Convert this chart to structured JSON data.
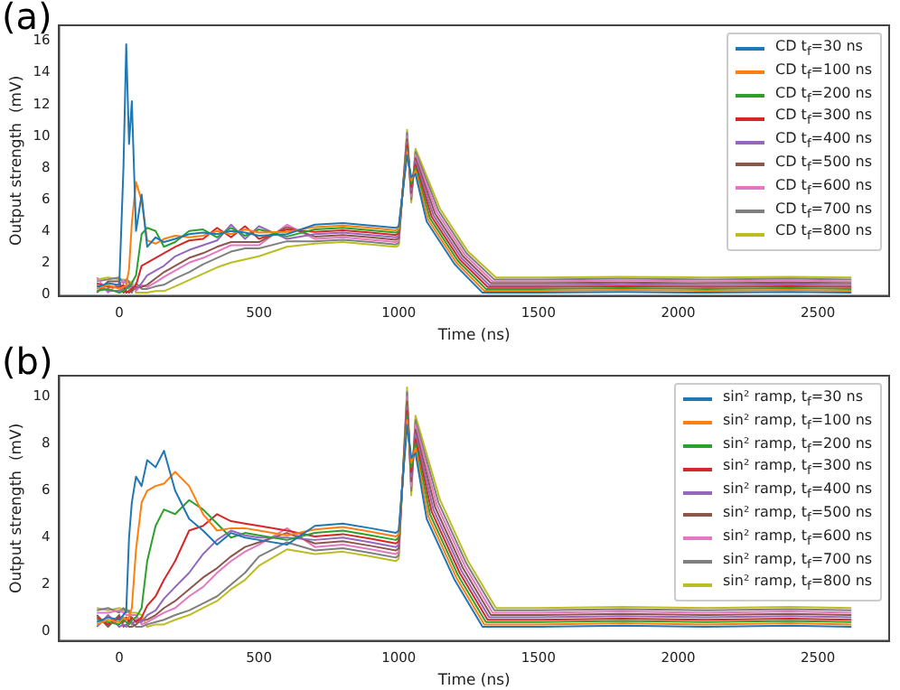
{
  "chart_data": [
    {
      "type": "line",
      "title": "(a)",
      "xlabel": "Time (ns)",
      "ylabel": "Output strength  (mV)",
      "xlim": [
        -215,
        2755
      ],
      "ylim": [
        -0.1,
        17
      ],
      "xticks": [
        0,
        500,
        1000,
        1500,
        2000,
        2500
      ],
      "yticks": [
        0,
        2,
        4,
        6,
        8,
        10,
        12,
        14,
        16
      ],
      "grid": false,
      "legend": "top right",
      "line_style": "solid",
      "series": [
        {
          "name": "CD t$_{f}$=30 ns",
          "color": "#1f77b4",
          "x": [
            -80,
            -40,
            0,
            15,
            25,
            35,
            45,
            60,
            80,
            100,
            130,
            160,
            200,
            250,
            300,
            350,
            400,
            450,
            500,
            600,
            700,
            800,
            900,
            990,
            1000,
            1030,
            1045,
            1060,
            1100,
            1200,
            1300,
            1500,
            1800,
            2100,
            2400,
            2620
          ],
          "values": [
            0.46,
            0.7,
            0.58,
            8,
            15.8,
            9.5,
            12.2,
            4,
            6.3,
            3.0,
            3.6,
            3.3,
            3.5,
            3.8,
            3.9,
            3.8,
            4.0,
            3.9,
            3.7,
            3.8,
            4.4,
            4.5,
            4.35,
            4.2,
            4.3,
            8.8,
            7.4,
            7.6,
            4.6,
            1.9,
            0.1,
            0.1,
            0.15,
            0.1,
            0.15,
            0.1
          ]
        },
        {
          "name": "CD t$_{f}$=100 ns",
          "color": "#ff7f0e",
          "x": [
            -80,
            -40,
            0,
            15,
            25,
            35,
            45,
            60,
            80,
            100,
            130,
            160,
            200,
            250,
            300,
            350,
            400,
            450,
            500,
            600,
            700,
            800,
            900,
            990,
            1000,
            1030,
            1045,
            1060,
            1106,
            1206,
            1306,
            1500,
            1800,
            2100,
            2400,
            2620
          ],
          "values": [
            0.34,
            0.58,
            0.34,
            0.46,
            0.58,
            1.6,
            4.5,
            7.1,
            5.9,
            3.4,
            3.2,
            3.5,
            3.7,
            3.6,
            3.7,
            4.0,
            3.8,
            4.1,
            3.9,
            3.95,
            4.25,
            4.35,
            4.2,
            4.05,
            4.15,
            9.0,
            7.2,
            7.8,
            4.7,
            2.0,
            0.22,
            0.22,
            0.27,
            0.22,
            0.27,
            0.22
          ]
        },
        {
          "name": "CD t$_{f}$=200 ns",
          "color": "#2ca02c",
          "x": [
            -80,
            -40,
            0,
            15,
            25,
            35,
            45,
            60,
            80,
            100,
            130,
            160,
            200,
            250,
            300,
            350,
            400,
            450,
            500,
            600,
            700,
            800,
            900,
            990,
            1000,
            1030,
            1045,
            1060,
            1112,
            1212,
            1312,
            1500,
            1800,
            2100,
            2400,
            2620
          ],
          "values": [
            0.22,
            0.34,
            0.1,
            0.22,
            0.34,
            0.46,
            0.7,
            1.2,
            3.8,
            4.2,
            4.0,
            3.0,
            3.3,
            4.0,
            4.1,
            3.6,
            4.2,
            3.7,
            4.1,
            3.65,
            4.1,
            4.2,
            4.05,
            3.9,
            4.0,
            9.2,
            7.0,
            8.0,
            4.8,
            2.1,
            0.34,
            0.34,
            0.39,
            0.34,
            0.39,
            0.34
          ]
        },
        {
          "name": "CD t$_{f}$=300 ns",
          "color": "#d62728",
          "x": [
            -80,
            -40,
            0,
            15,
            25,
            35,
            45,
            60,
            80,
            100,
            130,
            160,
            200,
            250,
            300,
            350,
            400,
            450,
            500,
            600,
            700,
            800,
            900,
            990,
            1000,
            1030,
            1045,
            1060,
            1118,
            1218,
            1318,
            1500,
            1800,
            2100,
            2400,
            2620
          ],
          "values": [
            0.7,
            0.46,
            0.46,
            0.58,
            0.1,
            0.22,
            0.34,
            0.58,
            1.8,
            2.0,
            2.3,
            2.6,
            3.0,
            3.4,
            3.5,
            4.2,
            3.6,
            4.3,
            3.5,
            4.1,
            3.95,
            4.05,
            3.9,
            3.75,
            3.85,
            9.4,
            6.8,
            8.2,
            4.9,
            2.2,
            0.46,
            0.46,
            0.51,
            0.46,
            0.51,
            0.46
          ]
        },
        {
          "name": "CD t$_{f}$=400 ns",
          "color": "#9467bd",
          "x": [
            -80,
            -40,
            0,
            15,
            25,
            35,
            45,
            60,
            80,
            100,
            130,
            160,
            200,
            250,
            300,
            350,
            400,
            450,
            500,
            600,
            700,
            800,
            900,
            990,
            1000,
            1030,
            1045,
            1060,
            1124,
            1224,
            1324,
            1500,
            1800,
            2100,
            2400,
            2620
          ],
          "values": [
            0.58,
            0.22,
            0.22,
            0.34,
            0.46,
            0.58,
            0.46,
            0.34,
            0.7,
            1.2,
            1.5,
            1.8,
            2.4,
            2.8,
            3.1,
            3.4,
            4.4,
            3.5,
            4.3,
            3.5,
            3.8,
            3.9,
            3.75,
            3.6,
            3.7,
            9.6,
            6.6,
            8.4,
            5.0,
            2.3,
            0.58,
            0.58,
            0.63,
            0.58,
            0.63,
            0.58
          ]
        },
        {
          "name": "CD t$_{f}$=500 ns",
          "color": "#8c564b",
          "x": [
            -80,
            -40,
            0,
            15,
            25,
            35,
            45,
            60,
            80,
            100,
            130,
            160,
            200,
            250,
            300,
            350,
            400,
            450,
            500,
            600,
            700,
            800,
            900,
            990,
            1000,
            1030,
            1045,
            1060,
            1130,
            1230,
            1330,
            1500,
            1800,
            2100,
            2400,
            2620
          ],
          "values": [
            0.1,
            0.82,
            0.82,
            0.1,
            0.22,
            0.1,
            0.22,
            0.46,
            0.46,
            0.6,
            1.0,
            1.4,
            1.8,
            2.3,
            2.6,
            3.0,
            3.3,
            3.3,
            3.3,
            4.25,
            3.65,
            3.75,
            3.6,
            3.45,
            3.55,
            9.8,
            6.4,
            8.6,
            5.1,
            2.4,
            0.7,
            0.7,
            0.75,
            0.7,
            0.75,
            0.7
          ]
        },
        {
          "name": "CD t$_{f}$=600 ns",
          "color": "#e377c2",
          "x": [
            -80,
            -40,
            0,
            15,
            25,
            35,
            45,
            60,
            80,
            100,
            130,
            160,
            200,
            250,
            300,
            350,
            400,
            450,
            500,
            600,
            700,
            800,
            900,
            990,
            1000,
            1030,
            1045,
            1060,
            1136,
            1236,
            1336,
            1500,
            1800,
            2100,
            2400,
            2620
          ],
          "values": [
            1.06,
            0.1,
            0.7,
            0.82,
            0.7,
            0.34,
            0.58,
            0.22,
            0.58,
            0.46,
            0.75,
            1.1,
            1.5,
            2.0,
            2.3,
            2.7,
            3.1,
            3.1,
            3.1,
            4.4,
            3.5,
            3.6,
            3.45,
            3.3,
            3.4,
            10.0,
            6.2,
            8.8,
            5.2,
            2.5,
            0.82,
            0.82,
            0.87,
            0.82,
            0.87,
            0.82
          ]
        },
        {
          "name": "CD t$_{f}$=700 ns",
          "color": "#7f7f7f",
          "x": [
            -80,
            -40,
            0,
            15,
            25,
            35,
            45,
            60,
            80,
            100,
            130,
            160,
            200,
            250,
            300,
            350,
            400,
            450,
            500,
            600,
            700,
            800,
            900,
            990,
            1000,
            1030,
            1045,
            1060,
            1142,
            1242,
            1342,
            1500,
            1800,
            2100,
            2400,
            2620
          ],
          "values": [
            0.82,
            0.94,
            1.06,
            0.7,
            0.94,
            0.82,
            0.1,
            0.7,
            0.34,
            0.34,
            0.5,
            0.6,
            1.0,
            1.4,
            1.9,
            2.3,
            2.7,
            2.9,
            2.9,
            3.35,
            3.35,
            3.45,
            3.3,
            3.15,
            3.25,
            10.2,
            6.0,
            9.0,
            5.3,
            2.6,
            0.94,
            0.94,
            0.99,
            0.94,
            0.99,
            0.94
          ]
        },
        {
          "name": "CD t$_{f}$=800 ns",
          "color": "#bcbd22",
          "x": [
            -80,
            -40,
            0,
            15,
            25,
            35,
            45,
            60,
            80,
            100,
            130,
            160,
            200,
            250,
            300,
            350,
            400,
            450,
            500,
            600,
            700,
            800,
            900,
            990,
            1000,
            1030,
            1045,
            1060,
            1148,
            1248,
            1348,
            1500,
            1800,
            2100,
            2400,
            2620
          ],
          "values": [
            0.94,
            1.06,
            0.94,
            0.94,
            0.82,
            0.7,
            0.82,
            0.1,
            0.1,
            0.1,
            0.2,
            0.2,
            0.5,
            0.9,
            1.3,
            1.7,
            2.0,
            2.2,
            2.4,
            3.0,
            3.2,
            3.3,
            3.15,
            3.0,
            3.1,
            10.4,
            5.8,
            9.2,
            5.4,
            2.7,
            1.06,
            1.06,
            1.11,
            1.06,
            1.11,
            1.06
          ]
        }
      ]
    },
    {
      "type": "line",
      "title": "(b)",
      "xlabel": "Time (ns)",
      "ylabel": "Output strength  (mV)",
      "xlim": [
        -215,
        2755
      ],
      "ylim": [
        -0.4,
        10.9
      ],
      "xticks": [
        0,
        500,
        1000,
        1500,
        2000,
        2500
      ],
      "yticks": [
        0,
        2,
        4,
        6,
        8,
        10
      ],
      "grid": false,
      "legend": "top right",
      "line_style": "solid",
      "series": [
        {
          "name": "sin² ramp, t$_{f}$=30 ns",
          "color": "#1f77b4",
          "x": [
            -80,
            -40,
            0,
            15,
            25,
            35,
            45,
            60,
            80,
            100,
            130,
            160,
            200,
            250,
            300,
            350,
            400,
            450,
            500,
            600,
            700,
            800,
            900,
            990,
            1000,
            1030,
            1045,
            1060,
            1100,
            1200,
            1300,
            1500,
            1800,
            2100,
            2400,
            2620
          ],
          "values": [
            0.4,
            0.6,
            0.5,
            0.7,
            0.9,
            4.0,
            5.5,
            6.6,
            6.2,
            7.3,
            7.0,
            7.7,
            6.0,
            4.8,
            4.3,
            3.7,
            4.2,
            4.0,
            3.9,
            3.7,
            4.5,
            4.6,
            4.4,
            4.2,
            4.3,
            8.8,
            7.4,
            7.6,
            4.8,
            2.2,
            0.2,
            0.2,
            0.25,
            0.2,
            0.25,
            0.2
          ]
        },
        {
          "name": "sin² ramp, t$_{f}$=100 ns",
          "color": "#ff7f0e",
          "x": [
            -80,
            -40,
            0,
            15,
            25,
            35,
            45,
            60,
            80,
            100,
            130,
            160,
            200,
            250,
            300,
            350,
            400,
            450,
            500,
            600,
            700,
            800,
            900,
            990,
            1000,
            1030,
            1045,
            1060,
            1106,
            1206,
            1306,
            1500,
            1800,
            2100,
            2400,
            2620
          ],
          "values": [
            0.3,
            0.5,
            0.4,
            0.6,
            0.5,
            0.6,
            1.0,
            3.5,
            5.5,
            6.0,
            6.2,
            6.3,
            6.8,
            6.2,
            5.0,
            4.3,
            4.4,
            4.4,
            4.3,
            4.1,
            4.35,
            4.45,
            4.25,
            4.05,
            4.15,
            9.0,
            7.2,
            7.8,
            4.9,
            2.3,
            0.3,
            0.3,
            0.35,
            0.3,
            0.35,
            0.3
          ]
        },
        {
          "name": "sin² ramp, t$_{f}$=200 ns",
          "color": "#2ca02c",
          "x": [
            -80,
            -40,
            0,
            15,
            25,
            35,
            45,
            60,
            80,
            100,
            130,
            160,
            200,
            250,
            300,
            350,
            400,
            450,
            500,
            600,
            700,
            800,
            900,
            990,
            1000,
            1030,
            1045,
            1060,
            1112,
            1212,
            1312,
            1500,
            1800,
            2100,
            2400,
            2620
          ],
          "values": [
            0.5,
            0.4,
            0.3,
            0.5,
            0.4,
            0.3,
            0.5,
            0.6,
            1.0,
            3.0,
            4.5,
            5.2,
            5.0,
            5.6,
            5.2,
            4.6,
            4.0,
            4.2,
            4.1,
            3.9,
            4.2,
            4.3,
            4.1,
            3.9,
            4.0,
            9.2,
            7.0,
            8.0,
            5.0,
            2.4,
            0.4,
            0.4,
            0.45,
            0.4,
            0.45,
            0.4
          ]
        },
        {
          "name": "sin² ramp, t$_{f}$=300 ns",
          "color": "#d62728",
          "x": [
            -80,
            -40,
            0,
            15,
            25,
            35,
            45,
            60,
            80,
            100,
            130,
            160,
            200,
            250,
            300,
            350,
            400,
            450,
            500,
            600,
            700,
            800,
            900,
            990,
            1000,
            1030,
            1045,
            1060,
            1118,
            1218,
            1318,
            1500,
            1800,
            2100,
            2400,
            2620
          ],
          "values": [
            0.6,
            0.3,
            0.6,
            0.4,
            0.6,
            0.4,
            0.6,
            0.4,
            0.6,
            1.1,
            1.5,
            2.2,
            3.0,
            4.3,
            4.5,
            5.0,
            4.7,
            4.6,
            4.5,
            4.3,
            4.05,
            4.15,
            3.95,
            3.75,
            3.85,
            9.4,
            6.8,
            8.2,
            5.1,
            2.5,
            0.5,
            0.5,
            0.55,
            0.5,
            0.55,
            0.5
          ]
        },
        {
          "name": "sin² ramp, t$_{f}$=400 ns",
          "color": "#9467bd",
          "x": [
            -80,
            -40,
            0,
            15,
            25,
            35,
            45,
            60,
            80,
            100,
            130,
            160,
            200,
            250,
            300,
            350,
            400,
            450,
            500,
            600,
            700,
            800,
            900,
            990,
            1000,
            1030,
            1045,
            1060,
            1124,
            1224,
            1324,
            1500,
            1800,
            2100,
            2400,
            2620
          ],
          "values": [
            0.2,
            0.7,
            0.2,
            0.3,
            0.2,
            0.5,
            0.3,
            0.5,
            0.4,
            0.7,
            0.9,
            1.4,
            1.9,
            2.5,
            3.3,
            3.9,
            4.3,
            4.1,
            4.0,
            4.0,
            3.9,
            4.0,
            3.8,
            3.6,
            3.7,
            9.6,
            6.6,
            8.4,
            5.2,
            2.6,
            0.6,
            0.6,
            0.65,
            0.6,
            0.65,
            0.6
          ]
        },
        {
          "name": "sin² ramp, t$_{f}$=500 ns",
          "color": "#8c564b",
          "x": [
            -80,
            -40,
            0,
            15,
            25,
            35,
            45,
            60,
            80,
            100,
            130,
            160,
            200,
            250,
            300,
            350,
            400,
            450,
            500,
            600,
            700,
            800,
            900,
            990,
            1000,
            1030,
            1045,
            1060,
            1130,
            1230,
            1330,
            1500,
            1800,
            2100,
            2400,
            2620
          ],
          "values": [
            0.7,
            0.2,
            0.7,
            0.2,
            0.3,
            0.2,
            0.2,
            0.3,
            0.5,
            0.5,
            0.7,
            1.0,
            1.3,
            1.8,
            2.3,
            2.7,
            3.2,
            3.6,
            3.8,
            4.2,
            3.75,
            3.85,
            3.65,
            3.45,
            3.55,
            9.8,
            6.4,
            8.6,
            5.3,
            2.7,
            0.7,
            0.7,
            0.75,
            0.7,
            0.75,
            0.7
          ]
        },
        {
          "name": "sin² ramp, t$_{f}$=600 ns",
          "color": "#e377c2",
          "x": [
            -80,
            -40,
            0,
            15,
            25,
            35,
            45,
            60,
            80,
            100,
            130,
            160,
            200,
            250,
            300,
            350,
            400,
            450,
            500,
            600,
            700,
            800,
            900,
            990,
            1000,
            1030,
            1045,
            1060,
            1136,
            1236,
            1336,
            1500,
            1800,
            2100,
            2400,
            2620
          ],
          "values": [
            0.8,
            0.8,
            0.9,
            0.8,
            0.7,
            0.7,
            0.7,
            0.7,
            0.3,
            0.4,
            0.6,
            0.8,
            1.0,
            1.5,
            1.9,
            2.5,
            3.0,
            3.4,
            3.7,
            4.4,
            3.6,
            3.7,
            3.5,
            3.3,
            3.4,
            10.0,
            6.2,
            8.8,
            5.4,
            2.8,
            0.8,
            0.8,
            0.85,
            0.8,
            0.85,
            0.8
          ]
        },
        {
          "name": "sin² ramp, t$_{f}$=700 ns",
          "color": "#7f7f7f",
          "x": [
            -80,
            -40,
            0,
            15,
            25,
            35,
            45,
            60,
            80,
            100,
            130,
            160,
            200,
            250,
            300,
            350,
            400,
            450,
            500,
            600,
            700,
            800,
            900,
            990,
            1000,
            1030,
            1045,
            1060,
            1142,
            1242,
            1342,
            1500,
            1800,
            2100,
            2400,
            2620
          ],
          "values": [
            0.9,
            1.0,
            0.8,
            1.0,
            0.8,
            0.9,
            0.4,
            0.2,
            0.2,
            0.3,
            0.4,
            0.5,
            0.7,
            0.9,
            1.2,
            1.5,
            2.0,
            2.5,
            3.2,
            3.8,
            3.45,
            3.55,
            3.35,
            3.15,
            3.25,
            10.2,
            6.0,
            9.0,
            5.5,
            2.9,
            0.9,
            0.9,
            0.95,
            0.9,
            0.95,
            0.9
          ]
        },
        {
          "name": "sin² ramp, t$_{f}$=800 ns",
          "color": "#bcbd22",
          "x": [
            -80,
            -40,
            0,
            15,
            25,
            35,
            45,
            60,
            80,
            100,
            130,
            160,
            200,
            250,
            300,
            350,
            400,
            450,
            500,
            600,
            700,
            800,
            900,
            990,
            1000,
            1030,
            1045,
            1060,
            1148,
            1248,
            1348,
            1500,
            1800,
            2100,
            2400,
            2620
          ],
          "values": [
            1.0,
            0.9,
            1.0,
            0.9,
            1.0,
            0.8,
            0.8,
            0.8,
            0.7,
            0.2,
            0.3,
            0.3,
            0.5,
            0.7,
            1.0,
            1.3,
            1.8,
            2.2,
            2.8,
            3.5,
            3.3,
            3.4,
            3.2,
            3.0,
            3.1,
            10.4,
            5.8,
            9.2,
            5.6,
            3.0,
            1.0,
            1.0,
            1.05,
            1.0,
            1.05,
            1.0
          ]
        }
      ]
    }
  ]
}
